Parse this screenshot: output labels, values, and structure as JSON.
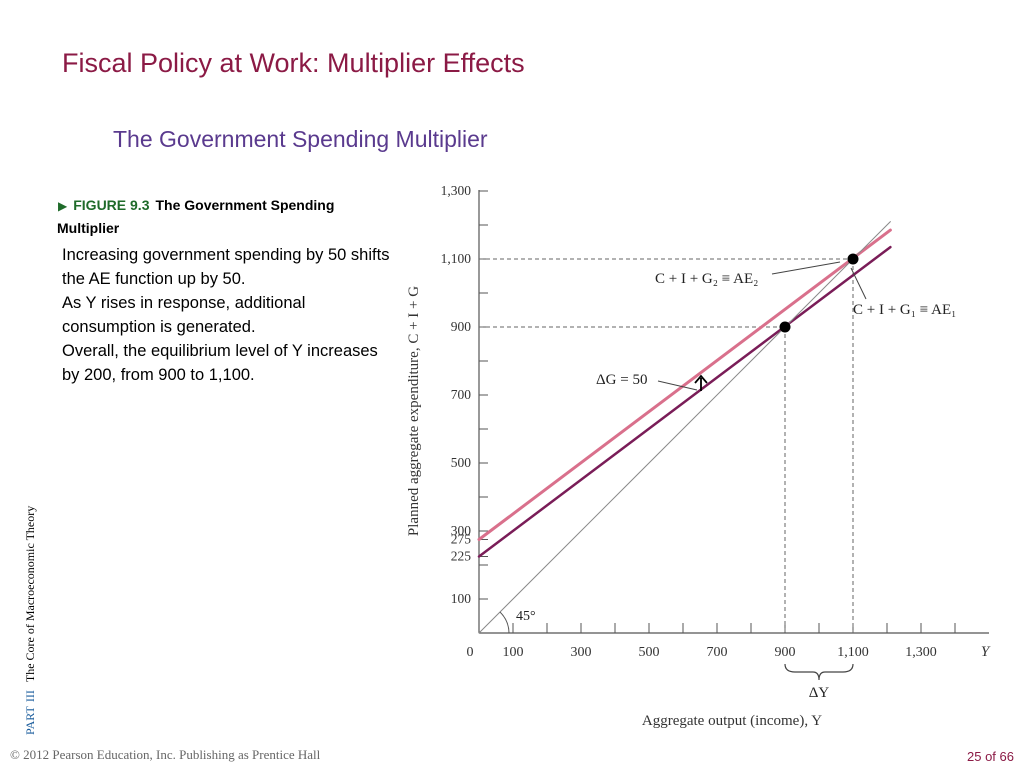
{
  "slide": {
    "title": "Fiscal Policy at Work: Multiplier Effects",
    "subtitle": "The Government Spending Multiplier"
  },
  "figure": {
    "arrow_glyph": "▶",
    "number": "FIGURE 9.3",
    "name": "The Government Spending Multiplier"
  },
  "body": [
    "Increasing government spending by 50 shifts the AE function up by 50.",
    "As Y rises in response, additional consumption is generated.",
    "Overall, the equilibrium level of Y increases by 200, from  900 to 1,100."
  ],
  "side_label": {
    "part": "PART",
    "part_num": "III",
    "text": "The Core of Macroeconomic Theory"
  },
  "footer": {
    "copyright": "© 2012 Pearson Education, Inc. Publishing as Prentice Hall",
    "page": "25 of 66"
  },
  "chart_data": {
    "type": "line",
    "xlabel": "Aggregate output (income), Y",
    "ylabel": "Planned aggregate expenditure, C + I + G",
    "xlim": [
      0,
      1500
    ],
    "ylim": [
      0,
      1300
    ],
    "x_ticks": [
      {
        "value": 100,
        "label": "100"
      },
      {
        "value": 300,
        "label": "300"
      },
      {
        "value": 500,
        "label": "500"
      },
      {
        "value": 700,
        "label": "700"
      },
      {
        "value": 900,
        "label": "900"
      },
      {
        "value": 1100,
        "label": "1,100"
      },
      {
        "value": 1300,
        "label": "1,300"
      }
    ],
    "x_origin_label": "0",
    "x_axis_end_label": "Y",
    "y_ticks": [
      {
        "value": 100,
        "label": "100"
      },
      {
        "value": 225,
        "label": "225"
      },
      {
        "value": 275,
        "label": "275"
      },
      {
        "value": 300,
        "label": "300"
      },
      {
        "value": 500,
        "label": "500"
      },
      {
        "value": 700,
        "label": "700"
      },
      {
        "value": 900,
        "label": "900"
      },
      {
        "value": 1100,
        "label": "1,100"
      },
      {
        "value": 1300,
        "label": "1,300"
      }
    ],
    "series": [
      {
        "name": "C + I + G₂ ≡ AE₂",
        "x": [
          0,
          1210
        ],
        "y": [
          275,
          1185
        ],
        "color": "#d9708c"
      },
      {
        "name": "C + I + G₁ ≡ AE₁",
        "x": [
          0,
          1210
        ],
        "y": [
          225,
          1135
        ],
        "color": "#7a1d58"
      },
      {
        "name": "45°",
        "x": [
          0,
          1210
        ],
        "y": [
          0,
          1210
        ],
        "color": "#8a8a8a"
      }
    ],
    "equilibria": [
      {
        "x": 900,
        "y": 900
      },
      {
        "x": 1100,
        "y": 1100
      }
    ],
    "annotations": {
      "delta_g": "ΔG = 50",
      "delta_y": "ΔY",
      "angle": "45°",
      "ae2_label": "C + I + G₂ ≡ AE₂",
      "ae1_label": "C + I + G₁ ≡ AE₁"
    }
  }
}
